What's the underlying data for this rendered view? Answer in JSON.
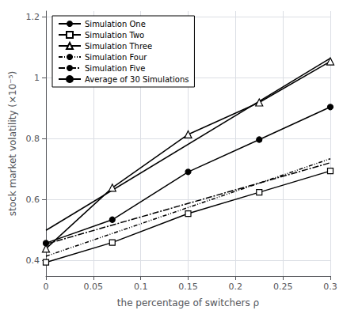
{
  "chart_data": {
    "type": "line",
    "xlabel": "the percentage of switchers ρ",
    "ylabel": "stock market volatility (×10⁻⁵)",
    "xlim": [
      0,
      0.3
    ],
    "ylim": [
      0.35,
      1.22
    ],
    "xticks": [
      0,
      0.05,
      0.1,
      0.15,
      0.2,
      0.25,
      0.3
    ],
    "yticks": [
      0.4,
      0.6,
      0.8,
      1,
      1.2
    ],
    "grid": true,
    "legend": "upper left",
    "series": [
      {
        "name": "Simulation One",
        "color": "black",
        "line_style": "solid",
        "marker": "none",
        "x": [
          0,
          0.3
        ],
        "values": [
          0.5,
          1.065
        ]
      },
      {
        "name": "Simulation Two",
        "color": "black",
        "line_style": "solid",
        "marker": "open-square",
        "x": [
          0,
          0.07,
          0.15,
          0.225,
          0.3
        ],
        "values": [
          0.395,
          0.46,
          0.555,
          0.625,
          0.695
        ]
      },
      {
        "name": "Simulation Three",
        "color": "black",
        "line_style": "solid",
        "marker": "open-triangle",
        "x": [
          0,
          0.07,
          0.15,
          0.225,
          0.3
        ],
        "values": [
          0.44,
          0.64,
          0.815,
          0.92,
          1.055
        ]
      },
      {
        "name": "Simulation Four",
        "color": "black",
        "line_style": "dashdotdot",
        "marker": "none",
        "x": [
          0,
          0.3
        ],
        "values": [
          0.415,
          0.735
        ]
      },
      {
        "name": "Simulation Five",
        "color": "black",
        "line_style": "dashdot",
        "marker": "none",
        "x": [
          0,
          0.3
        ],
        "values": [
          0.455,
          0.722
        ]
      },
      {
        "name": "Average of 30 Simulations",
        "color": "black",
        "line_style": "solid",
        "marker": "filled-circle",
        "x": [
          0,
          0.07,
          0.15,
          0.225,
          0.3
        ],
        "values": [
          0.458,
          0.535,
          0.692,
          0.798,
          0.905
        ]
      }
    ]
  }
}
